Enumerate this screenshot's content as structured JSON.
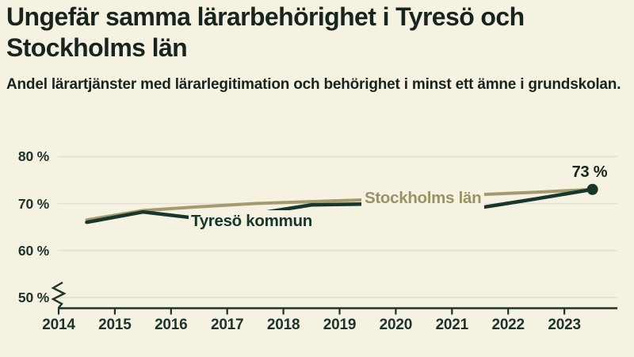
{
  "title": "Ungefär samma lärarbehörighet i Tyresö och Stockholms län",
  "subtitle": "Andel lärartjänster med lärarlegitimation och behörighet i minst ett ämne i grundskolan.",
  "colors": {
    "background": "#f6f2e2",
    "text_dark": "#18251f",
    "axis": "#1c342b",
    "gridline": "#e1dfd3",
    "stockholm_line": "#a39b6e",
    "stockholm_label": "#9a9164",
    "tyreso_line": "#17362c"
  },
  "chart_data": {
    "type": "line",
    "x": [
      2014,
      2015,
      2016,
      2017,
      2018,
      2019,
      2020,
      2021,
      2022,
      2023
    ],
    "x_tick_labels": [
      "2014",
      "2015",
      "2016",
      "2017",
      "2018",
      "2019",
      "2020",
      "2021",
      "2022",
      "2023"
    ],
    "series": [
      {
        "name": "Stockholms län",
        "color": "#a39b6e",
        "values": [
          66.5,
          68.5,
          69.3,
          70.0,
          70.4,
          70.8,
          71.3,
          71.9,
          72.4,
          73.0
        ]
      },
      {
        "name": "Tyresö kommun",
        "color": "#17362c",
        "values": [
          66.0,
          68.2,
          66.8,
          67.8,
          69.7,
          69.9,
          69.4,
          69.1,
          71.0,
          73.0
        ]
      }
    ],
    "end_label": "73 %",
    "end_value": 73,
    "y_ticks": [
      80,
      70,
      60,
      50
    ],
    "y_tick_labels": [
      "80 %",
      "70 %",
      "60 %",
      "50 %"
    ],
    "ylim": [
      50,
      80
    ],
    "axis_break": true,
    "grid": "horizontal-only",
    "legend": "inline-series-labels"
  }
}
